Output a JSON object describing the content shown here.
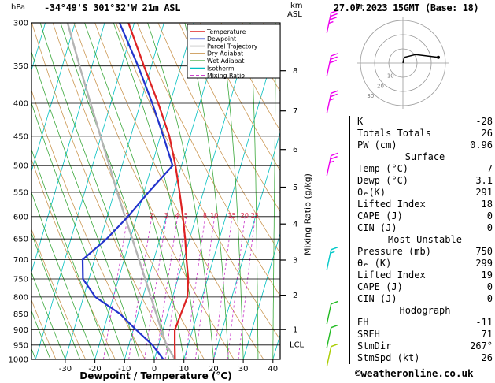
{
  "header": {
    "station": "-34°49'S 301°32'W 21m ASL",
    "datetime": "27.07.2023 15GMT (Base: 18)"
  },
  "axes": {
    "pressure_unit": "hPa",
    "km_label": "km",
    "asl_label": "ASL",
    "hodo_unit": "kt",
    "mixing_label": "Mixing Ratio (g/kg)",
    "x_label": "Dewpoint / Temperature (°C)",
    "lcl_label": "LCL"
  },
  "legend": {
    "items": [
      {
        "label": "Temperature",
        "color": "#dd2222",
        "dash": ""
      },
      {
        "label": "Dewpoint",
        "color": "#2233cc",
        "dash": ""
      },
      {
        "label": "Parcel Trajectory",
        "color": "#b4b4b4",
        "dash": ""
      },
      {
        "label": "Dry Adiabat",
        "color": "#cc9955",
        "dash": ""
      },
      {
        "label": "Wet Adiabat",
        "color": "#3aa83a",
        "dash": ""
      },
      {
        "label": "Isotherm",
        "color": "#00c0c0",
        "dash": ""
      },
      {
        "label": "Mixing Ratio",
        "color": "#cc44cc",
        "dash": "4 3"
      }
    ]
  },
  "chart_data": {
    "type": "skewt_logp",
    "pressure_range_hpa": [
      300,
      1000
    ],
    "temp_axis_range_c": [
      -41,
      42
    ],
    "pressure_ticks_hpa": [
      300,
      350,
      400,
      450,
      500,
      550,
      600,
      650,
      700,
      750,
      800,
      850,
      900,
      950,
      1000
    ],
    "temp_ticks_c": [
      -30,
      -20,
      -10,
      0,
      10,
      20,
      30,
      40
    ],
    "profile": {
      "pressure_hpa": [
        1000,
        950,
        900,
        850,
        800,
        750,
        700,
        650,
        600,
        550,
        500,
        450,
        400,
        350,
        300
      ],
      "temperature_c": [
        7,
        5.5,
        4,
        4.5,
        5,
        3.5,
        1,
        -1.5,
        -4.5,
        -8,
        -12,
        -17,
        -24,
        -32.5,
        -42
      ],
      "dewpoint_c": [
        3.1,
        -2,
        -9,
        -16,
        -26,
        -32,
        -34,
        -28,
        -23,
        -18.5,
        -13,
        -19,
        -26,
        -34.5,
        -45
      ],
      "parcel_c": [
        7,
        2.7,
        -0.5,
        -3.8,
        -7.3,
        -11,
        -15,
        -19.3,
        -24,
        -29,
        -34.3,
        -40.2,
        -46.8,
        -54.2,
        -62.5
      ]
    },
    "surface": {
      "temp_c": 7,
      "dewp_c": 3.1
    },
    "mixing_ratio_lines_gkg": [
      1,
      2,
      3,
      4,
      5,
      8,
      10,
      15,
      20,
      25
    ],
    "km_ticks": [
      {
        "km": 1,
        "hpa": 899
      },
      {
        "km": 2,
        "hpa": 795
      },
      {
        "km": 3,
        "hpa": 701
      },
      {
        "km": 4,
        "hpa": 616
      },
      {
        "km": 5,
        "hpa": 540
      },
      {
        "km": 6,
        "hpa": 472
      },
      {
        "km": 7,
        "hpa": 411
      },
      {
        "km": 8,
        "hpa": 356
      }
    ],
    "lcl_hpa": 948,
    "wind_barbs": [
      {
        "hpa": 300,
        "speed_kt": 35,
        "color": "#ee00ee"
      },
      {
        "hpa": 350,
        "speed_kt": 30,
        "color": "#ee00ee"
      },
      {
        "hpa": 400,
        "speed_kt": 25,
        "color": "#ee00ee"
      },
      {
        "hpa": 500,
        "speed_kt": 25,
        "color": "#ee00ee"
      },
      {
        "hpa": 700,
        "speed_kt": 15,
        "color": "#00c8c8"
      },
      {
        "hpa": 850,
        "speed_kt": 10,
        "color": "#22bb22"
      },
      {
        "hpa": 925,
        "speed_kt": 10,
        "color": "#22bb22"
      },
      {
        "hpa": 990,
        "speed_kt": 10,
        "color": "#aacc00"
      }
    ],
    "colors": {
      "temperature": "#dd2222",
      "dewpoint": "#2233cc",
      "parcel": "#b4b4b4",
      "dry_adiabat": "#cc9955",
      "wet_adiabat": "#3aa83a",
      "isotherm": "#00c0c0",
      "mixing_ratio": "#cc44cc",
      "grid": "#000000",
      "mixing_label_color": "#dd2244"
    }
  },
  "hodograph": {
    "rings_kt": [
      10,
      20,
      30
    ],
    "trace_uv_kt": [
      [
        0,
        0
      ],
      [
        1,
        4
      ],
      [
        9,
        6
      ],
      [
        17,
        5
      ],
      [
        25,
        4
      ]
    ]
  },
  "panel": {
    "sections": [
      {
        "header": "",
        "rows": [
          {
            "label": "K",
            "value": "-28"
          },
          {
            "label": "Totals Totals",
            "value": "26"
          },
          {
            "label": "PW (cm)",
            "value": "0.96"
          }
        ]
      },
      {
        "header": "Surface",
        "rows": [
          {
            "label": "Temp (°C)",
            "value": "7"
          },
          {
            "label": "Dewp (°C)",
            "value": "3.1"
          },
          {
            "label": "θₑ(K)",
            "value": "291"
          },
          {
            "label": "Lifted Index",
            "value": "18"
          },
          {
            "label": "CAPE (J)",
            "value": "0"
          },
          {
            "label": "CIN (J)",
            "value": "0"
          }
        ]
      },
      {
        "header": "Most Unstable",
        "rows": [
          {
            "label": "Pressure (mb)",
            "value": "750"
          },
          {
            "label": "θₑ (K)",
            "value": "299"
          },
          {
            "label": "Lifted Index",
            "value": "19"
          },
          {
            "label": "CAPE (J)",
            "value": "0"
          },
          {
            "label": "CIN (J)",
            "value": "0"
          }
        ]
      },
      {
        "header": "Hodograph",
        "rows": [
          {
            "label": "EH",
            "value": "-11"
          },
          {
            "label": "SREH",
            "value": "71"
          },
          {
            "label": "StmDir",
            "value": "267°"
          },
          {
            "label": "StmSpd (kt)",
            "value": "26"
          }
        ]
      }
    ]
  },
  "footer": {
    "symbol": "©",
    "site": "weatheronline.co.uk"
  }
}
